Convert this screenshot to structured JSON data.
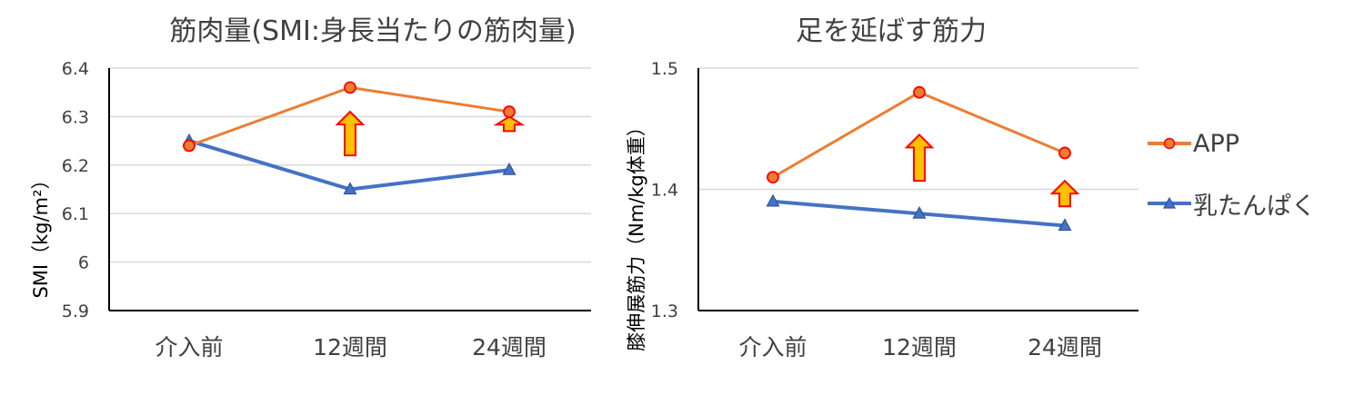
{
  "colors": {
    "app": "#ED7D31",
    "app_marker": "#FF0000",
    "milk": "#4472C4",
    "milk_marker": "#2F5597",
    "arrow_fill": "#FFC000",
    "arrow_stroke": "#FF0000",
    "grid": "#D9D9D9",
    "axis": "#000000"
  },
  "legend": [
    {
      "name": "APP",
      "marker": "circle"
    },
    {
      "name": "乳たんぱく",
      "marker": "triangle"
    }
  ],
  "chart_data": [
    {
      "type": "line",
      "title": "筋肉量(SMI:身長当たりの筋肉量)",
      "xlabel": "",
      "ylabel": "SMI（kg/m²）",
      "categories": [
        "介入前",
        "12週間",
        "24週間"
      ],
      "ylim": [
        5.9,
        6.4
      ],
      "yticks": [
        "6.4",
        "6.3",
        "6.2",
        "6.1",
        "6",
        "5.9"
      ],
      "grid": true,
      "series": [
        {
          "name": "APP",
          "values": [
            6.24,
            6.36,
            6.31
          ]
        },
        {
          "name": "乳たんぱく",
          "values": [
            6.25,
            6.15,
            6.19
          ]
        }
      ],
      "arrows": [
        {
          "category": "12週間",
          "from": 6.22,
          "to": 6.31
        },
        {
          "category": "24週間",
          "from": 6.27,
          "to": 6.3
        }
      ]
    },
    {
      "type": "line",
      "title": "足を延ばす筋力",
      "xlabel": "",
      "ylabel": "膝伸展筋力（Nm/kg体重）",
      "categories": [
        "介入前",
        "12週間",
        "24週間"
      ],
      "ylim": [
        1.3,
        1.5
      ],
      "yticks": [
        "1.5",
        "1.4",
        "1.3"
      ],
      "grid": true,
      "series": [
        {
          "name": "APP",
          "values": [
            1.41,
            1.48,
            1.43
          ]
        },
        {
          "name": "乳たんぱく",
          "values": [
            1.39,
            1.38,
            1.37
          ]
        }
      ],
      "arrows": [
        {
          "category": "12週間",
          "from": 1.407,
          "to": 1.445
        },
        {
          "category": "24週間",
          "from": 1.386,
          "to": 1.407
        }
      ]
    }
  ]
}
